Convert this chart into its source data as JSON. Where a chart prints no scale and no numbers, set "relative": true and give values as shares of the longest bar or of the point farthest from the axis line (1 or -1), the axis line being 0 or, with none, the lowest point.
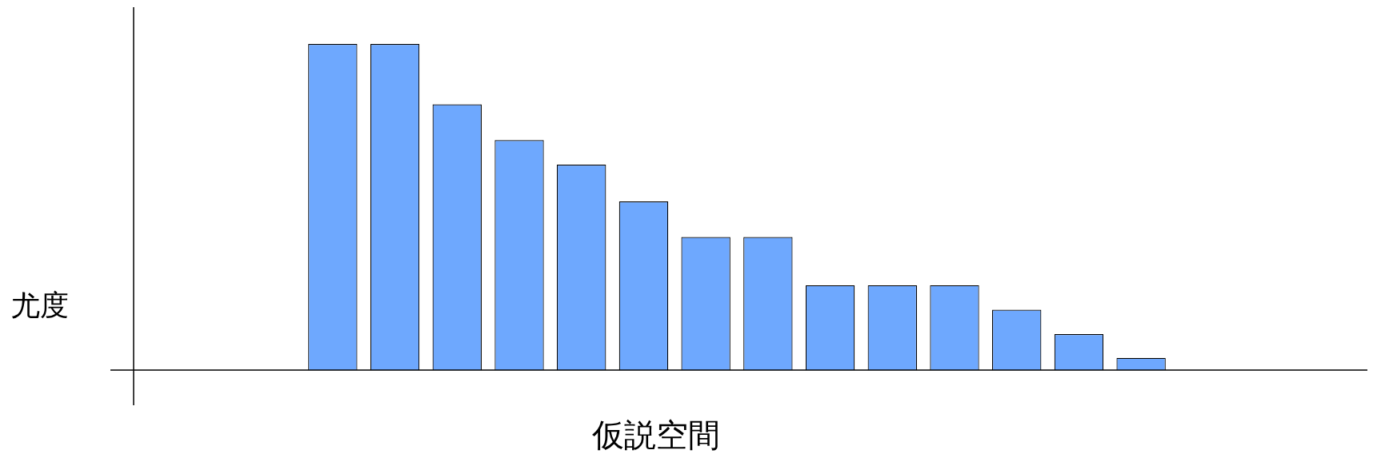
{
  "chart_data": {
    "type": "bar",
    "relative": true,
    "xlabel": "仮説空間",
    "annotations": [
      "尤度"
    ],
    "categories": [
      null,
      null,
      null,
      null,
      null,
      null,
      null,
      null,
      null,
      null,
      null,
      null,
      null,
      null
    ],
    "values": [
      1,
      1,
      0.815,
      0.705,
      0.63,
      0.517,
      0.408,
      0.408,
      0.26,
      0.26,
      0.26,
      0.185,
      0.11,
      0.0375
    ],
    "color": "#6ea8fe",
    "legend": false
  }
}
